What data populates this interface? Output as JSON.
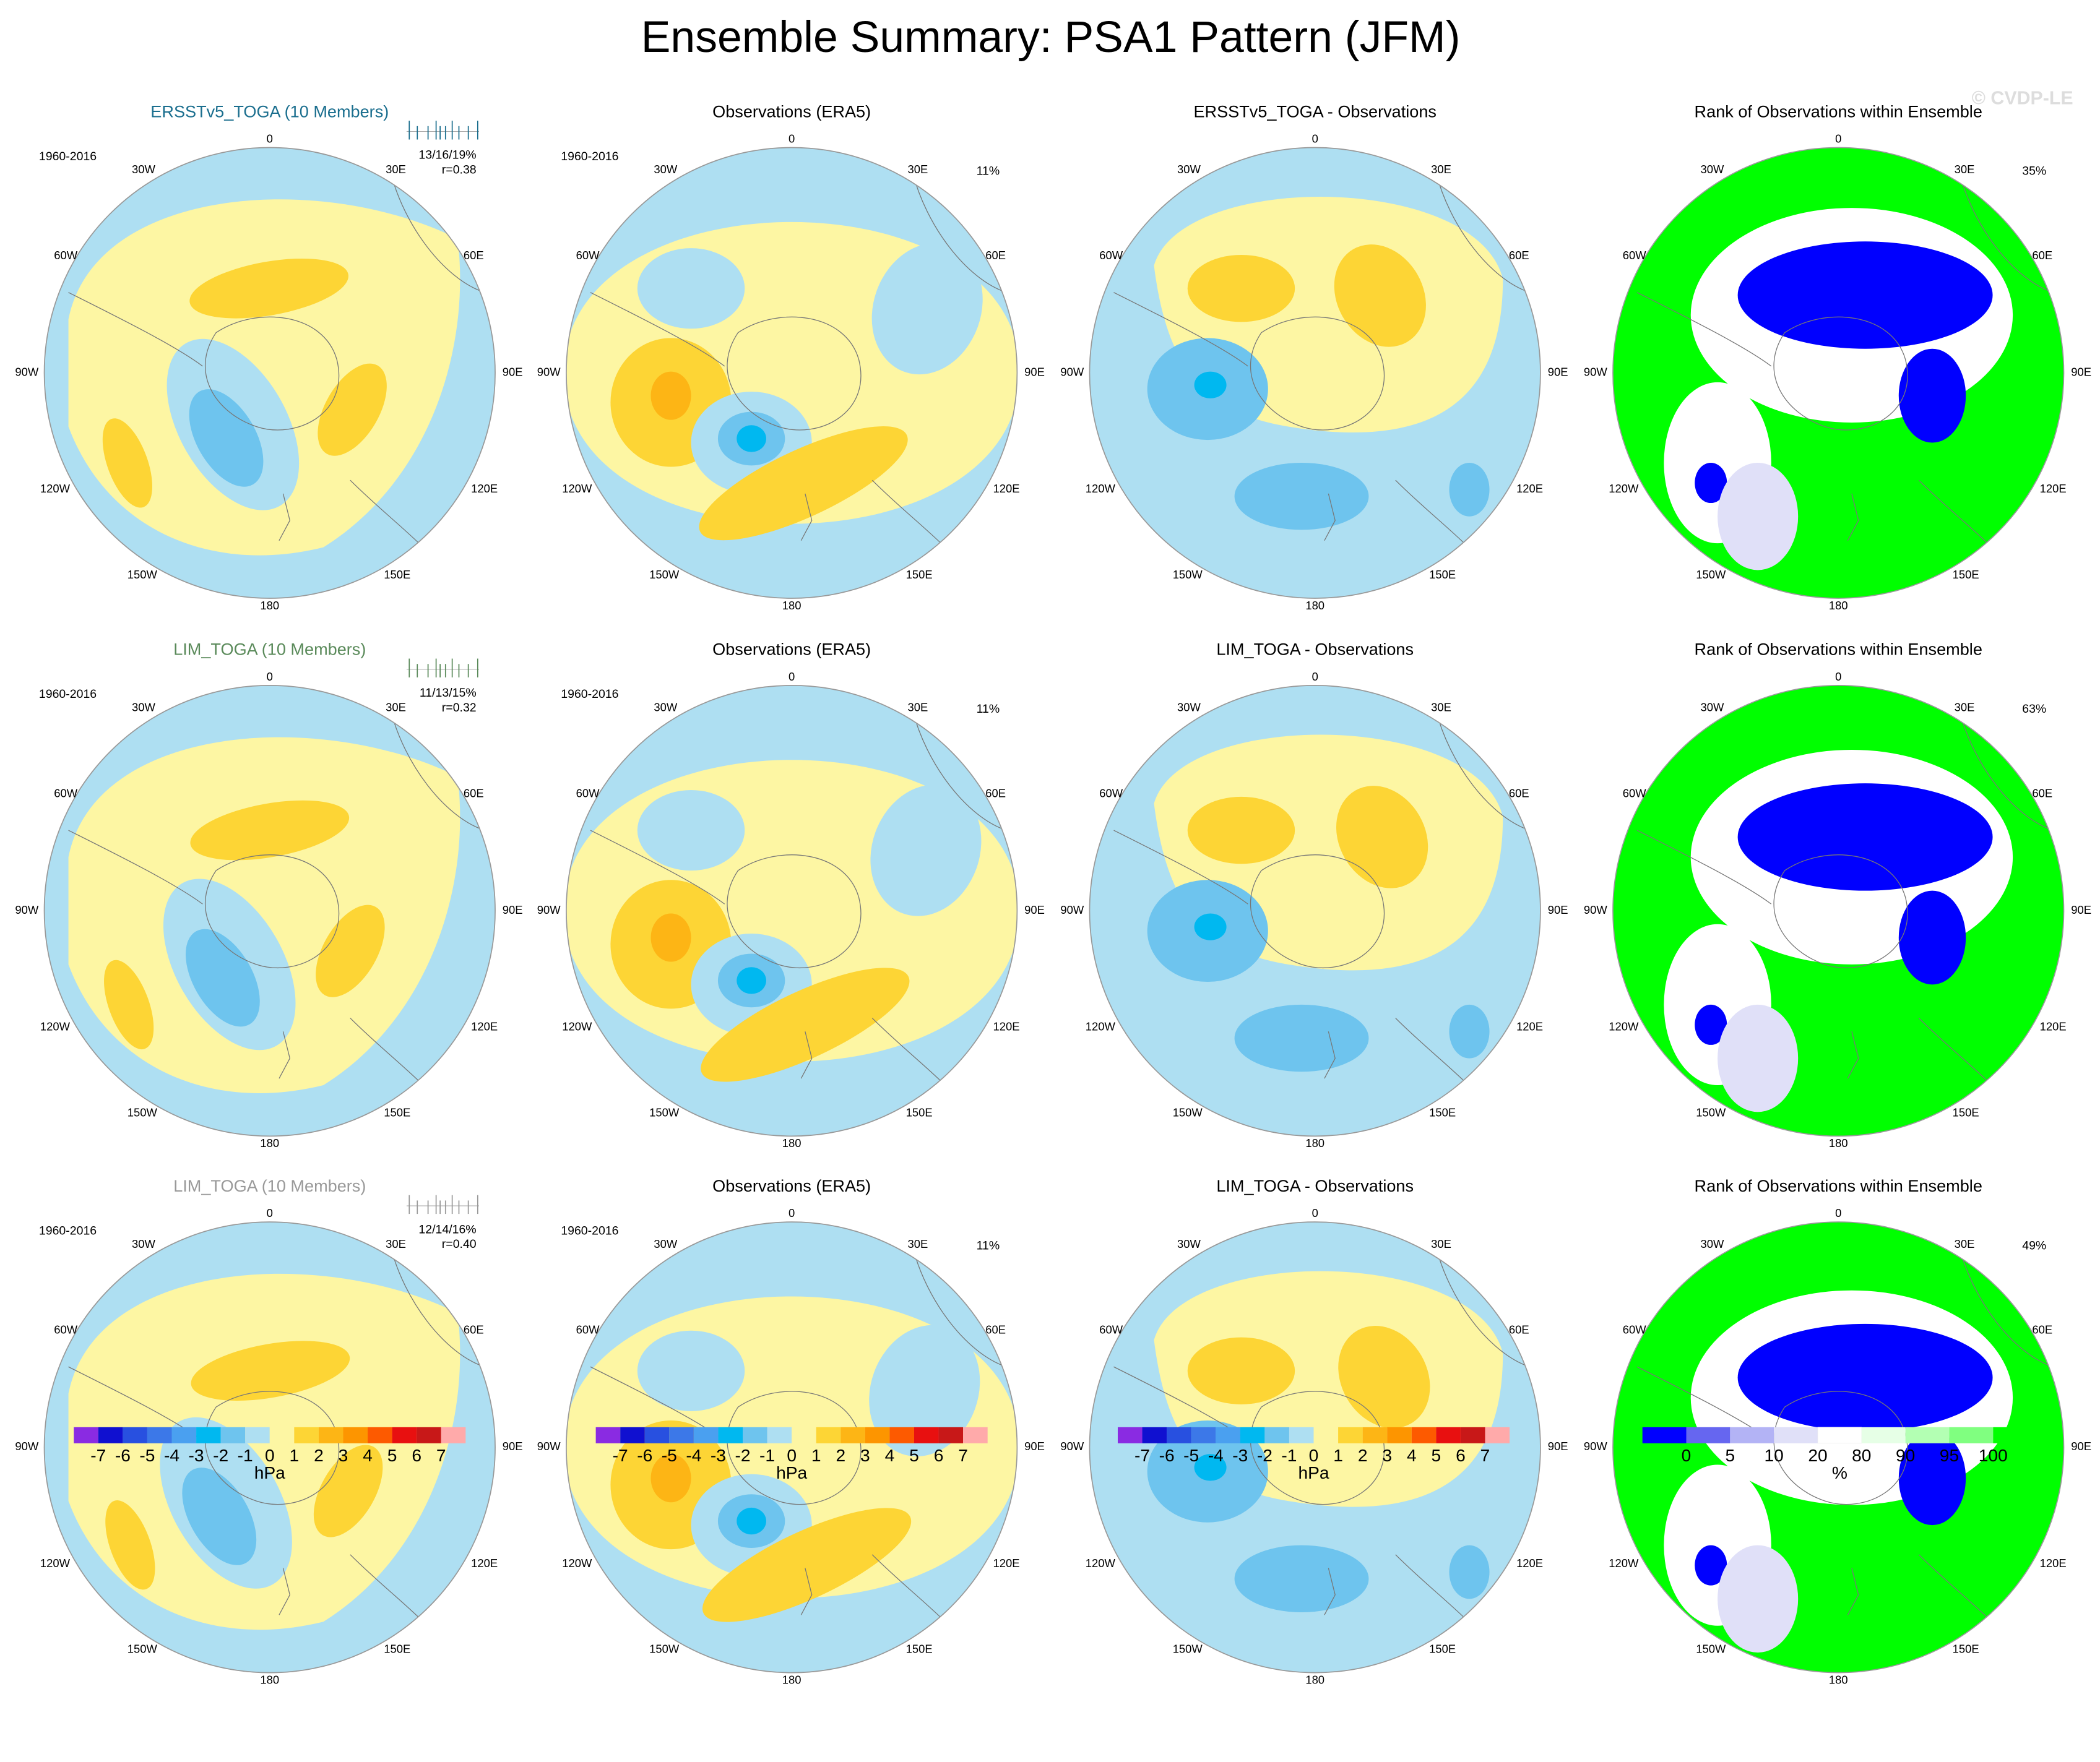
{
  "title": "Ensemble Summary: PSA1 Pattern (JFM)",
  "watermark": "© CVDP-LE",
  "longitude_labels": [
    "0",
    "30E",
    "60E",
    "90E",
    "120E",
    "150E",
    "180",
    "150W",
    "120W",
    "90W",
    "60W",
    "30W"
  ],
  "rows": [
    {
      "panels": [
        {
          "title": "ERSSTv5_TOGA (10 Members)",
          "period": "1960-2016",
          "stats": "13/16/19%",
          "r": "r=0.38"
        },
        {
          "title": "Observations (ERA5)",
          "period": "1960-2016",
          "percent": "11%"
        },
        {
          "title": "ERSSTv5_TOGA - Observations"
        },
        {
          "title": "Rank of Observations within Ensemble",
          "percent": "35%"
        }
      ]
    },
    {
      "panels": [
        {
          "title": "LIM_TOGA (10 Members)",
          "period": "1960-2016",
          "stats": "11/13/15%",
          "r": "r=0.32"
        },
        {
          "title": "Observations (ERA5)",
          "period": "1960-2016",
          "percent": "11%"
        },
        {
          "title": "LIM_TOGA - Observations"
        },
        {
          "title": "Rank of Observations within Ensemble",
          "percent": "63%"
        }
      ]
    },
    {
      "panels": [
        {
          "title": "LIM_TOGA (10 Members)",
          "period": "1960-2016",
          "stats": "12/14/16%",
          "r": "r=0.40"
        },
        {
          "title": "Observations (ERA5)",
          "period": "1960-2016",
          "percent": "11%"
        },
        {
          "title": "LIM_TOGA - Observations"
        },
        {
          "title": "Rank of Observations within Ensemble",
          "percent": "49%"
        }
      ]
    }
  ],
  "colorbars": [
    {
      "labels": [
        "-7",
        "-6",
        "-5",
        "-4",
        "-3",
        "-2",
        "-1",
        "0",
        "1",
        "2",
        "3",
        "4",
        "5",
        "6",
        "7"
      ],
      "units": "hPa",
      "colors": [
        "#8a2be2",
        "#1010d0",
        "#2850e0",
        "#3c78e8",
        "#4aa0f0",
        "#00b8f0",
        "#6ec4ee",
        "#aedff2",
        "#fdf6a3",
        "#fdd535",
        "#fdb515",
        "#fd9500",
        "#fd5a00",
        "#e81010",
        "#c81818",
        "#ffaaaa"
      ]
    },
    {
      "labels": [
        "-7",
        "-6",
        "-5",
        "-4",
        "-3",
        "-2",
        "-1",
        "0",
        "1",
        "2",
        "3",
        "4",
        "5",
        "6",
        "7"
      ],
      "units": "hPa",
      "colors": [
        "#8a2be2",
        "#1010d0",
        "#2850e0",
        "#3c78e8",
        "#4aa0f0",
        "#00b8f0",
        "#6ec4ee",
        "#aedff2",
        "#fdf6a3",
        "#fdd535",
        "#fdb515",
        "#fd9500",
        "#fd5a00",
        "#e81010",
        "#c81818",
        "#ffaaaa"
      ]
    },
    {
      "labels": [
        "-7",
        "-6",
        "-5",
        "-4",
        "-3",
        "-2",
        "-1",
        "0",
        "1",
        "2",
        "3",
        "4",
        "5",
        "6",
        "7"
      ],
      "units": "hPa",
      "colors": [
        "#8a2be2",
        "#1010d0",
        "#2850e0",
        "#3c78e8",
        "#4aa0f0",
        "#00b8f0",
        "#6ec4ee",
        "#aedff2",
        "#fdf6a3",
        "#fdd535",
        "#fdb515",
        "#fd9500",
        "#fd5a00",
        "#e81010",
        "#c81818",
        "#ffaaaa"
      ]
    },
    {
      "labels": [
        "0",
        "5",
        "10",
        "20",
        "80",
        "90",
        "95",
        "100"
      ],
      "units": "%",
      "colors": [
        "#0000ff",
        "#6666f0",
        "#b3b3f5",
        "#e0e0f8",
        "#ffffff",
        "#e6ffe6",
        "#b3ffb3",
        "#80ff80",
        "#00ff00"
      ]
    }
  ]
}
